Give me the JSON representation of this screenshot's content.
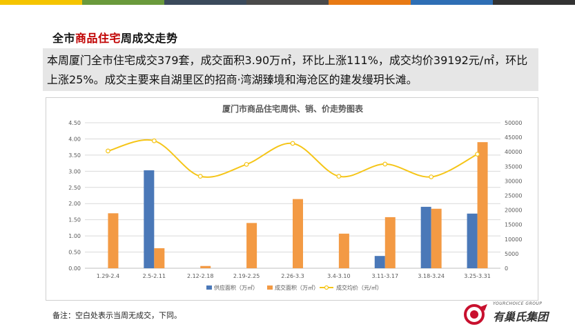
{
  "topbar_colors": [
    "#f5c400",
    "#6a9a3c",
    "#3b4a5c",
    "#4a4a4a",
    "#e87a14",
    "#2e6fb5",
    "#333333"
  ],
  "title": {
    "prefix": "全市",
    "highlight": "商品住宅",
    "suffix": "周成交走势"
  },
  "summary": "本周厦门全市住宅成交379套，成交面积3.90万㎡，环比上涨111%，成交均价39192元/㎡，环比上涨25%。成交主要来自湖里区的招商·湾湖臻境和海沧区的建发缦玥长滩。",
  "note": "备注：空白处表示当周无成交，下同。",
  "logo": {
    "en": "YOURCHOICE GROUP",
    "cn": "有巢氏集团"
  },
  "chart_data": {
    "type": "bar",
    "title": "厦门市商品住宅周供、销、价走势图表",
    "categories": [
      "1.29-2.4",
      "2.5-2.11",
      "2.12-2.18",
      "2.19-2.25",
      "2.26-3.3",
      "3.4-3.10",
      "3.11-3.17",
      "3.18-3.24",
      "3.25-3.31"
    ],
    "series": [
      {
        "name": "供应面积（万㎡）",
        "type": "bar",
        "axis": "left",
        "color": "#4a78b8",
        "values": [
          null,
          3.03,
          null,
          null,
          null,
          null,
          0.38,
          1.9,
          1.69
        ]
      },
      {
        "name": "成交面积（万㎡）",
        "type": "bar",
        "axis": "left",
        "color": "#f39a44",
        "values": [
          1.7,
          0.62,
          0.07,
          1.4,
          2.14,
          1.07,
          1.58,
          1.84,
          3.9
        ]
      },
      {
        "name": "成交均价（元/㎡）",
        "type": "line",
        "axis": "right",
        "color": "#f5c518",
        "values": [
          40300,
          43800,
          31600,
          35700,
          42900,
          31600,
          35800,
          31400,
          39192
        ]
      }
    ],
    "ylim_left": [
      0,
      4.5
    ],
    "yticks_left": [
      "0.00",
      "0.50",
      "1.00",
      "1.50",
      "2.00",
      "2.50",
      "3.00",
      "3.50",
      "4.00",
      "4.50"
    ],
    "ylim_right": [
      0,
      50000
    ],
    "yticks_right": [
      "0",
      "5000",
      "10000",
      "15000",
      "20000",
      "25000",
      "30000",
      "35000",
      "40000",
      "45000",
      "50000"
    ],
    "grid": true,
    "legend_position": "bottom"
  }
}
